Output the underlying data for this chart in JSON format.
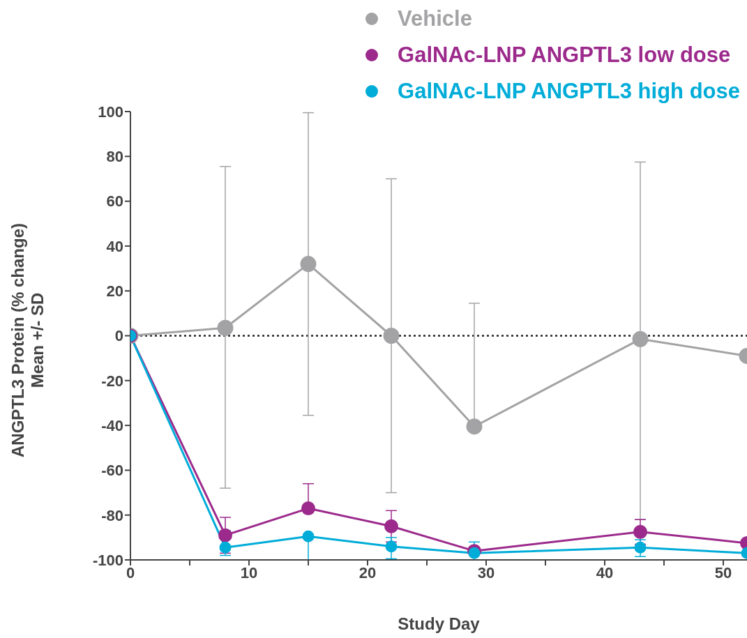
{
  "chart_data": {
    "type": "line",
    "xlabel": "Study Day",
    "ylabel": "ANGPTL3 Protein (% change)\nMean +/- SD",
    "x": [
      0,
      8,
      15,
      22,
      29,
      43,
      52
    ],
    "series": [
      {
        "name": "Vehicle",
        "color": "#a3a3a5",
        "values": [
          0,
          3.5,
          32,
          0,
          -40.5,
          -1.5,
          -9
        ],
        "errors": [
          null,
          [
            -68,
            75.5
          ],
          [
            -35.5,
            99.5
          ],
          [
            -70,
            70
          ],
          [
            -40.5,
            14.5
          ],
          [
            -82,
            77.5
          ],
          null
        ]
      },
      {
        "name": "GalNAc-LNP ANGPTL3 low dose",
        "color": "#9c2a8c",
        "values": [
          0,
          -89,
          -77,
          -85,
          -96,
          -87.5,
          -92.5
        ],
        "errors": [
          null,
          [
            -97,
            -81
          ],
          [
            -77,
            -66
          ],
          [
            -92,
            -78
          ],
          null,
          [
            -93,
            -82
          ],
          null
        ]
      },
      {
        "name": "GalNAc-LNP ANGPTL3 high dose",
        "color": "#00acd8",
        "values": [
          0,
          -94.5,
          -89.5,
          -94,
          -97,
          -94.5,
          -97
        ],
        "errors": [
          null,
          [
            -98,
            -87
          ],
          [
            -100,
            -89.5
          ],
          [
            -99.5,
            -90
          ],
          [
            -97,
            -92
          ],
          [
            -98.5,
            -91
          ],
          null
        ]
      }
    ],
    "xlim": [
      0,
      52
    ],
    "xticks": [
      0,
      {
        "value": 5,
        "label": null
      },
      10,
      {
        "value": 15,
        "label": null
      },
      20,
      {
        "value": 25,
        "label": null
      },
      30,
      {
        "value": 35,
        "label": null
      },
      40,
      {
        "value": 45,
        "label": null
      },
      50
    ],
    "ylim": [
      -100,
      100
    ],
    "yticks": [
      -100,
      -80,
      -60,
      -40,
      -20,
      0,
      20,
      40,
      60,
      80,
      100
    ],
    "ref_lines": [
      {
        "axis": "y",
        "value": 0,
        "color": "#222222",
        "line_style": "dotted"
      }
    ],
    "grid": false,
    "legend": "top right",
    "marker": "circle",
    "line_style": "solid"
  }
}
